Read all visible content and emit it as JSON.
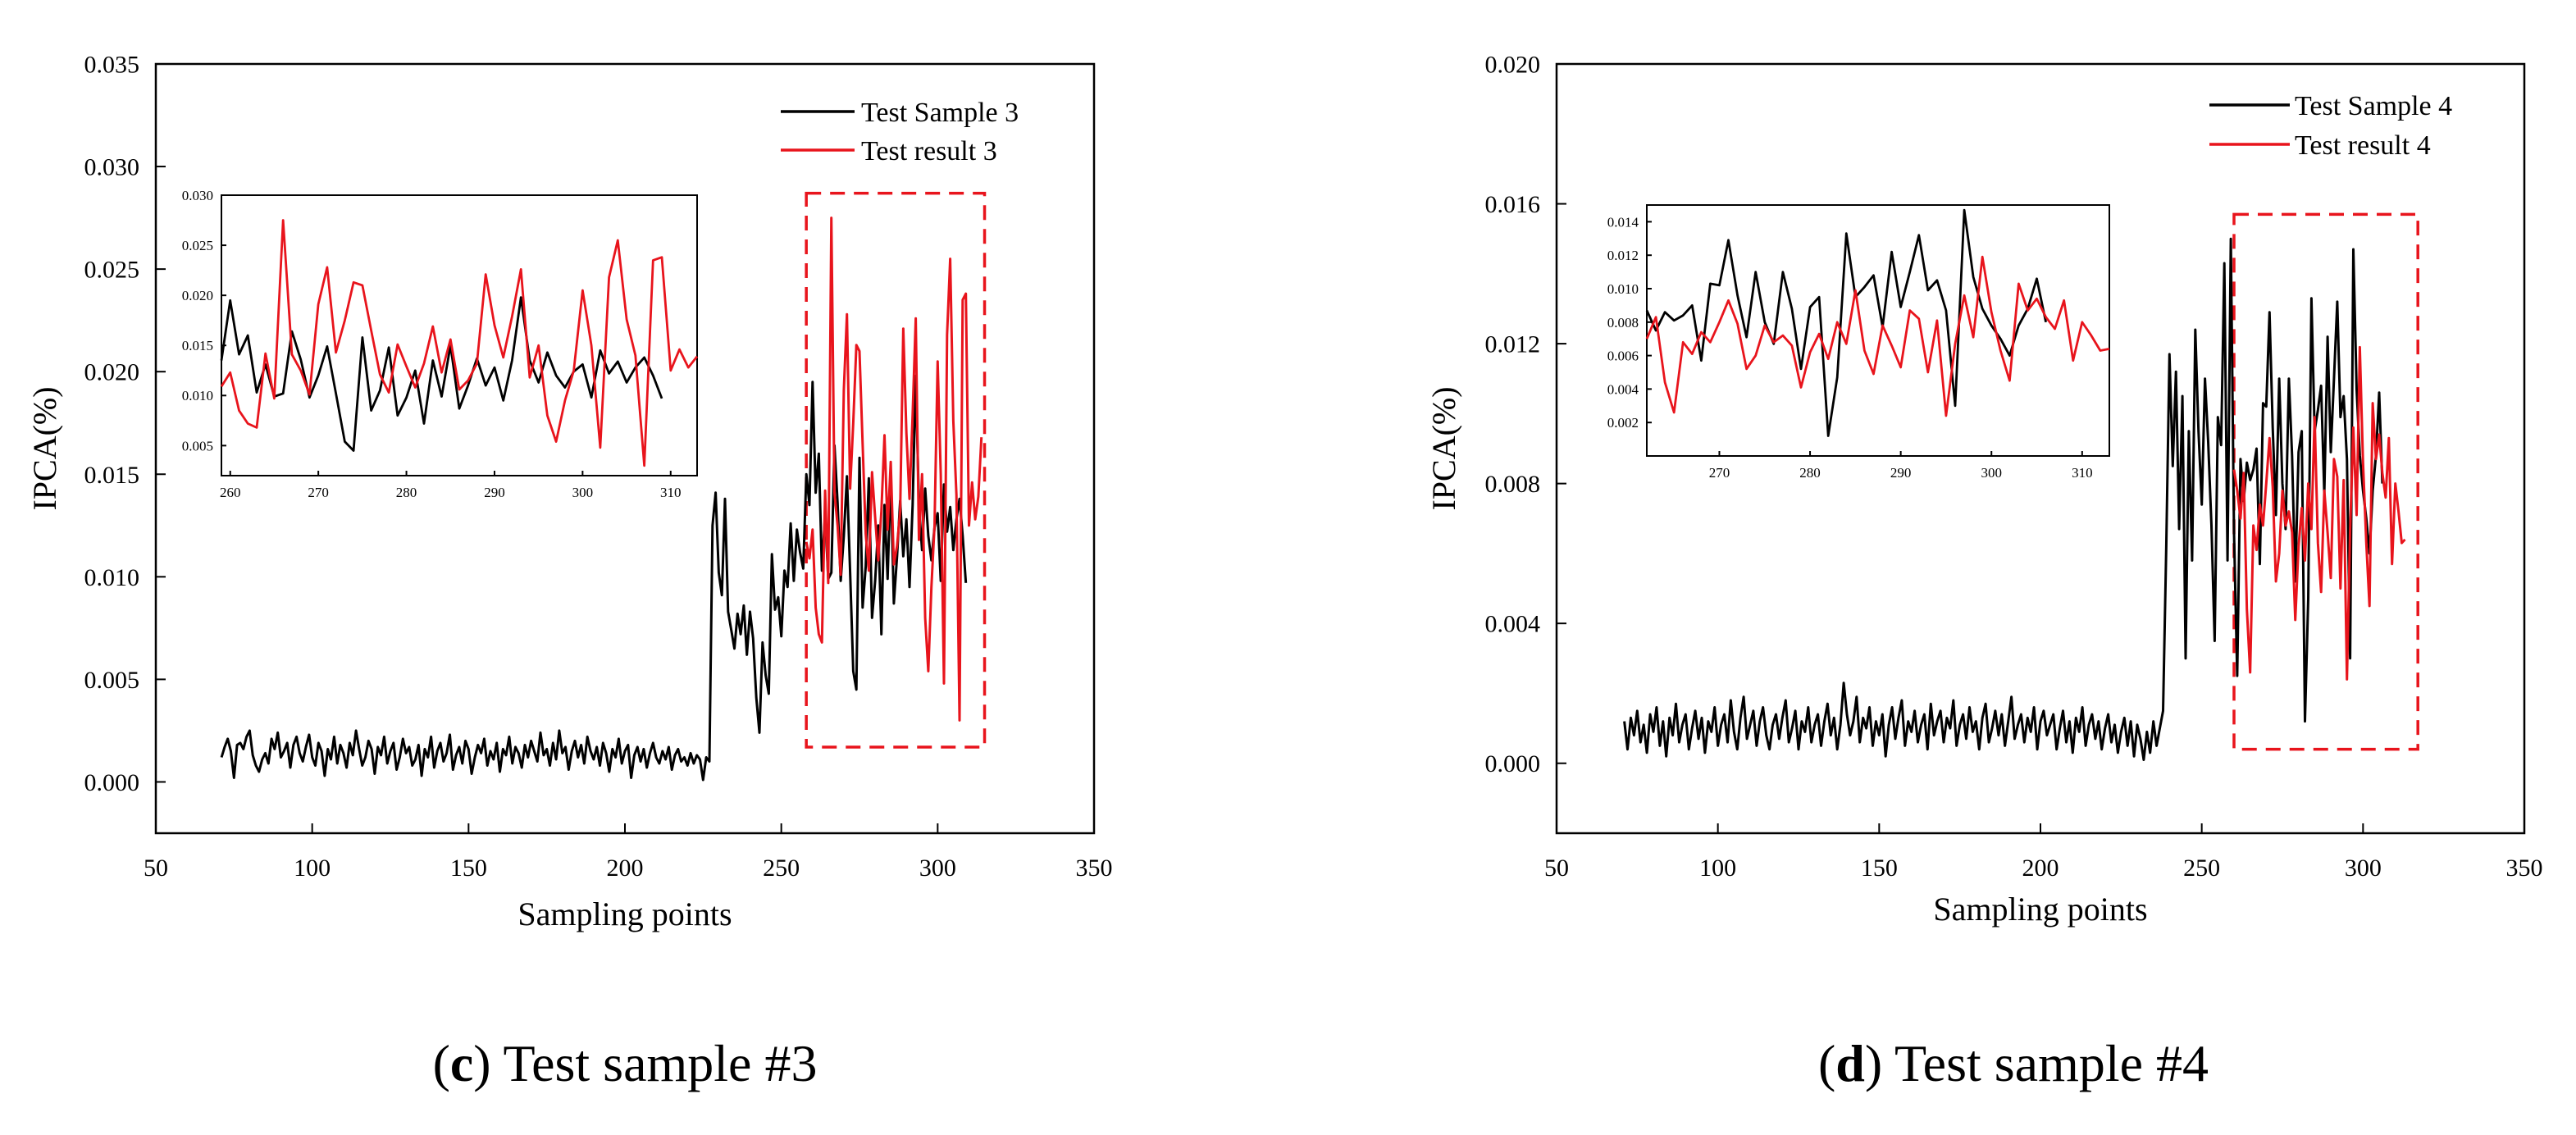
{
  "colors": {
    "sample": "#000000",
    "result": "#e8141c",
    "box": "#e8141c",
    "frame": "#000000"
  },
  "chart_data": [
    {
      "type": "line",
      "panel_letter": "c",
      "caption_text": " Test sample #3",
      "xlabel": "Sampling points",
      "ylabel": "IPCA(%)",
      "xlim": [
        50,
        350
      ],
      "ylim": [
        -0.0025,
        0.035
      ],
      "xticks": [
        50,
        100,
        150,
        200,
        250,
        300,
        350
      ],
      "xtick_labels": [
        "50",
        "100",
        "150",
        "200",
        "250",
        "300",
        "350"
      ],
      "yticks": [
        0.0,
        0.005,
        0.01,
        0.015,
        0.02,
        0.025,
        0.03,
        0.035
      ],
      "ytick_labels": [
        "0.000",
        "0.005",
        "0.010",
        "0.015",
        "0.020",
        "0.025",
        "0.030",
        "0.035"
      ],
      "legend": [
        "Test Sample 3",
        "Test result 3"
      ],
      "highlight_x": [
        258,
        315
      ],
      "highlight_y": [
        0.0017,
        0.0287
      ],
      "series": [
        {
          "name": "Test Sample 3",
          "color": "#000000",
          "x_start": 71,
          "x_step": 1,
          "values": [
            0.0012,
            0.0017,
            0.0021,
            0.0015,
            0.0002,
            0.0018,
            0.0019,
            0.0016,
            0.0022,
            0.0025,
            0.0013,
            0.0008,
            0.0005,
            0.0011,
            0.0014,
            0.0009,
            0.0021,
            0.0016,
            0.0024,
            0.0012,
            0.0015,
            0.0019,
            0.0007,
            0.0018,
            0.0022,
            0.0014,
            0.001,
            0.0017,
            0.0023,
            0.0012,
            0.0008,
            0.0019,
            0.0015,
            0.0003,
            0.0016,
            0.0011,
            0.0022,
            0.0009,
            0.0018,
            0.0014,
            0.0007,
            0.0019,
            0.0013,
            0.0025,
            0.0016,
            0.0008,
            0.0012,
            0.002,
            0.0016,
            0.0004,
            0.0017,
            0.0013,
            0.0022,
            0.0009,
            0.0015,
            0.0019,
            0.0006,
            0.0012,
            0.0021,
            0.0014,
            0.0017,
            0.0008,
            0.0011,
            0.0018,
            0.0003,
            0.0016,
            0.0012,
            0.0022,
            0.0007,
            0.0015,
            0.0019,
            0.001,
            0.0014,
            0.0023,
            0.0006,
            0.0013,
            0.0017,
            0.0009,
            0.002,
            0.0016,
            0.0004,
            0.0012,
            0.0018,
            0.0014,
            0.0021,
            0.0008,
            0.0015,
            0.0011,
            0.0019,
            0.0005,
            0.0016,
            0.0013,
            0.0022,
            0.0009,
            0.0017,
            0.0014,
            0.0007,
            0.0018,
            0.0012,
            0.002,
            0.0015,
            0.001,
            0.0024,
            0.0013,
            0.0016,
            0.0008,
            0.0019,
            0.0011,
            0.0025,
            0.0014,
            0.0017,
            0.0006,
            0.0015,
            0.002,
            0.0012,
            0.0018,
            0.0009,
            0.0022,
            0.0015,
            0.0011,
            0.0017,
            0.0008,
            0.0019,
            0.0014,
            0.0005,
            0.0016,
            0.0012,
            0.0021,
            0.0009,
            0.0015,
            0.0018,
            0.0002,
            0.0013,
            0.0017,
            0.001,
            0.0016,
            0.0007,
            0.0014,
            0.0019,
            0.0012,
            0.0009,
            0.0015,
            0.0011,
            0.0017,
            0.0006,
            0.0013,
            0.0016,
            0.001,
            0.0012,
            0.0008,
            0.0014,
            0.0009,
            0.0013,
            0.0011,
            0.0001,
            0.0012,
            0.001,
            0.0125,
            0.0141,
            0.0102,
            0.0091,
            0.0138,
            0.0083,
            0.0074,
            0.0065,
            0.0082,
            0.0072,
            0.0086,
            0.0062,
            0.0083,
            0.007,
            0.0041,
            0.0024,
            0.0068,
            0.0052,
            0.0043,
            0.0111,
            0.0084,
            0.009,
            0.0071,
            0.0103,
            0.0095,
            0.0126,
            0.0098,
            0.0123,
            0.0112,
            0.0104,
            0.015,
            0.0135,
            0.0195,
            0.0141,
            0.016,
            0.0103,
            0.0131,
            0.0099,
            0.0102,
            0.0164,
            0.0136,
            0.0098,
            0.012,
            0.0149,
            0.0102,
            0.0054,
            0.0045,
            0.0158,
            0.0085,
            0.0105,
            0.0148,
            0.008,
            0.0098,
            0.0125,
            0.0072,
            0.0135,
            0.0099,
            0.015,
            0.0087,
            0.011,
            0.0137,
            0.011,
            0.0128,
            0.0095,
            0.0135,
            0.0198,
            0.0135,
            0.0113,
            0.0143,
            0.012,
            0.0108,
            0.0124,
            0.0131,
            0.0098,
            0.0145,
            0.0122,
            0.0134,
            0.0113,
            0.0128,
            0.0138,
            0.012,
            0.0097
          ]
        },
        {
          "name": "Test result 3",
          "color": "#e8141c",
          "x_start": 258,
          "x_step": 1,
          "values": [
            0.0117,
            0.0109,
            0.0123,
            0.0085,
            0.0072,
            0.0068,
            0.0142,
            0.0097,
            0.0275,
            0.0141,
            0.0125,
            0.0101,
            0.0191,
            0.0228,
            0.0143,
            0.0175,
            0.0213,
            0.021,
            0.0165,
            0.0121,
            0.0103,
            0.0151,
            0.0129,
            0.0108,
            0.0132,
            0.0169,
            0.0123,
            0.0156,
            0.0106,
            0.0115,
            0.0132,
            0.0221,
            0.017,
            0.0138,
            0.0179,
            0.0226,
            0.0118,
            0.015,
            0.008,
            0.0054,
            0.0095,
            0.0125,
            0.0205,
            0.015,
            0.0048,
            0.0218,
            0.0255,
            0.0176,
            0.014,
            0.003,
            0.0235,
            0.0238,
            0.0125,
            0.0146,
            0.0128,
            0.0139,
            0.0168
          ]
        }
      ],
      "inset": {
        "xlim": [
          259,
          313
        ],
        "ylim": [
          0.002,
          0.03
        ],
        "xticks": [
          260,
          270,
          280,
          290,
          300,
          310
        ],
        "xtick_labels": [
          "260",
          "270",
          "280",
          "290",
          "300",
          "310"
        ],
        "yticks": [
          0.005,
          0.01,
          0.015,
          0.02,
          0.025,
          0.03
        ],
        "ytick_labels": [
          "0.005",
          "0.010",
          "0.015",
          "0.020",
          "0.025",
          "0.030"
        ]
      }
    },
    {
      "type": "line",
      "panel_letter": "d",
      "caption_text": " Test sample #4",
      "xlabel": "Sampling points",
      "ylabel": "IPCA(%)",
      "xlim": [
        50,
        350
      ],
      "ylim": [
        -0.002,
        0.02
      ],
      "xticks": [
        50,
        100,
        150,
        200,
        250,
        300,
        350
      ],
      "xtick_labels": [
        "50",
        "100",
        "150",
        "200",
        "250",
        "300",
        "350"
      ],
      "yticks": [
        0.0,
        0.004,
        0.008,
        0.012,
        0.016,
        0.02
      ],
      "ytick_labels": [
        "0.000",
        "0.004",
        "0.008",
        "0.012",
        "0.016",
        "0.020"
      ],
      "legend": [
        "Test Sample 4",
        "Test result 4"
      ],
      "highlight_x": [
        260,
        317
      ],
      "highlight_y": [
        0.0004,
        0.0157
      ],
      "series": [
        {
          "name": "Test Sample 4",
          "color": "#000000",
          "x_start": 71,
          "x_step": 1,
          "values": [
            0.0012,
            0.0004,
            0.0013,
            0.0008,
            0.0015,
            0.0006,
            0.0011,
            0.0003,
            0.0014,
            0.0009,
            0.0016,
            0.0005,
            0.0012,
            0.0002,
            0.0013,
            0.0008,
            0.0017,
            0.0006,
            0.0011,
            0.0014,
            0.0004,
            0.001,
            0.0015,
            0.0007,
            0.0013,
            0.0003,
            0.0012,
            0.0009,
            0.0016,
            0.0005,
            0.0011,
            0.0014,
            0.0006,
            0.0018,
            0.0009,
            0.0004,
            0.0013,
            0.0019,
            0.0007,
            0.0011,
            0.0015,
            0.0005,
            0.0012,
            0.0016,
            0.0008,
            0.0004,
            0.0011,
            0.0014,
            0.0007,
            0.0013,
            0.0018,
            0.0006,
            0.001,
            0.0015,
            0.0004,
            0.0012,
            0.0009,
            0.0016,
            0.0006,
            0.0011,
            0.0014,
            0.0005,
            0.0012,
            0.0017,
            0.0008,
            0.0013,
            0.0004,
            0.0011,
            0.0023,
            0.0014,
            0.0008,
            0.0012,
            0.0019,
            0.0006,
            0.0013,
            0.001,
            0.0016,
            0.0005,
            0.0012,
            0.0008,
            0.0014,
            0.0002,
            0.0011,
            0.0016,
            0.0007,
            0.0013,
            0.0018,
            0.0005,
            0.0012,
            0.0009,
            0.0015,
            0.0006,
            0.0011,
            0.0014,
            0.0004,
            0.0017,
            0.0008,
            0.0012,
            0.0015,
            0.0006,
            0.0013,
            0.001,
            0.0018,
            0.0005,
            0.0011,
            0.0014,
            0.0007,
            0.0016,
            0.0009,
            0.0012,
            0.0004,
            0.0013,
            0.0017,
            0.0006,
            0.001,
            0.0015,
            0.0008,
            0.0014,
            0.0005,
            0.0012,
            0.0019,
            0.0007,
            0.0011,
            0.0014,
            0.0006,
            0.0013,
            0.0009,
            0.0016,
            0.0004,
            0.0012,
            0.0015,
            0.0008,
            0.0011,
            0.0014,
            0.0004,
            0.001,
            0.0015,
            0.0006,
            0.0012,
            0.0003,
            0.0013,
            0.0009,
            0.0016,
            0.0005,
            0.0011,
            0.0014,
            0.0007,
            0.0012,
            0.0004,
            0.001,
            0.0014,
            0.0006,
            0.0011,
            0.0003,
            0.0009,
            0.0013,
            0.0005,
            0.0012,
            0.0002,
            0.0011,
            0.0007,
            0.0001,
            0.0009,
            0.0003,
            0.0012,
            0.0005,
            0.001,
            0.0015,
            0.0062,
            0.0117,
            0.0085,
            0.0112,
            0.0067,
            0.0105,
            0.003,
            0.0095,
            0.0058,
            0.0124,
            0.0095,
            0.0074,
            0.011,
            0.0092,
            0.0068,
            0.0035,
            0.0099,
            0.0091,
            0.0143,
            0.0058,
            0.015,
            0.0066,
            0.0025,
            0.0087,
            0.0075,
            0.0086,
            0.0081,
            0.0084,
            0.009,
            0.0057,
            0.0103,
            0.0102,
            0.0129,
            0.0096,
            0.0071,
            0.011,
            0.008,
            0.0067,
            0.011,
            0.0088,
            0.0052,
            0.0089,
            0.0095,
            0.0012,
            0.0047,
            0.0133,
            0.0095,
            0.0101,
            0.0108,
            0.0077,
            0.0122,
            0.0089,
            0.011,
            0.0132,
            0.0099,
            0.0105,
            0.0087,
            0.003,
            0.0147,
            0.0107,
            0.0088,
            0.0078,
            0.007,
            0.006,
            0.0078,
            0.0088,
            0.0106,
            0.008
          ]
        },
        {
          "name": "Test result 4",
          "color": "#e8141c",
          "x_start": 260,
          "x_step": 1,
          "values": [
            0.0084,
            0.0078,
            0.007,
            0.0083,
            0.0044,
            0.0026,
            0.0068,
            0.0061,
            0.0074,
            0.0068,
            0.008,
            0.0093,
            0.0079,
            0.0052,
            0.006,
            0.0078,
            0.0068,
            0.0072,
            0.0066,
            0.0041,
            0.0062,
            0.0073,
            0.0058,
            0.008,
            0.0067,
            0.0099,
            0.0063,
            0.0049,
            0.0078,
            0.0066,
            0.0053,
            0.0087,
            0.0082,
            0.005,
            0.0081,
            0.0024,
            0.0067,
            0.0096,
            0.0071,
            0.0119,
            0.0086,
            0.0063,
            0.0045,
            0.0103,
            0.0087,
            0.0094,
            0.0083,
            0.0076,
            0.0093,
            0.0057,
            0.008,
            0.0072,
            0.0063,
            0.0064
          ]
        }
      ],
      "inset": {
        "xlim": [
          262,
          313
        ],
        "ylim": [
          0.0,
          0.015
        ],
        "xticks": [
          270,
          280,
          290,
          300,
          310
        ],
        "xtick_labels": [
          "270",
          "280",
          "290",
          "300",
          "310"
        ],
        "yticks": [
          0.002,
          0.004,
          0.006,
          0.008,
          0.01,
          0.012,
          0.014
        ],
        "ytick_labels": [
          "0.002",
          "0.004",
          "0.006",
          "0.008",
          "0.010",
          "0.012",
          "0.014"
        ]
      }
    }
  ]
}
